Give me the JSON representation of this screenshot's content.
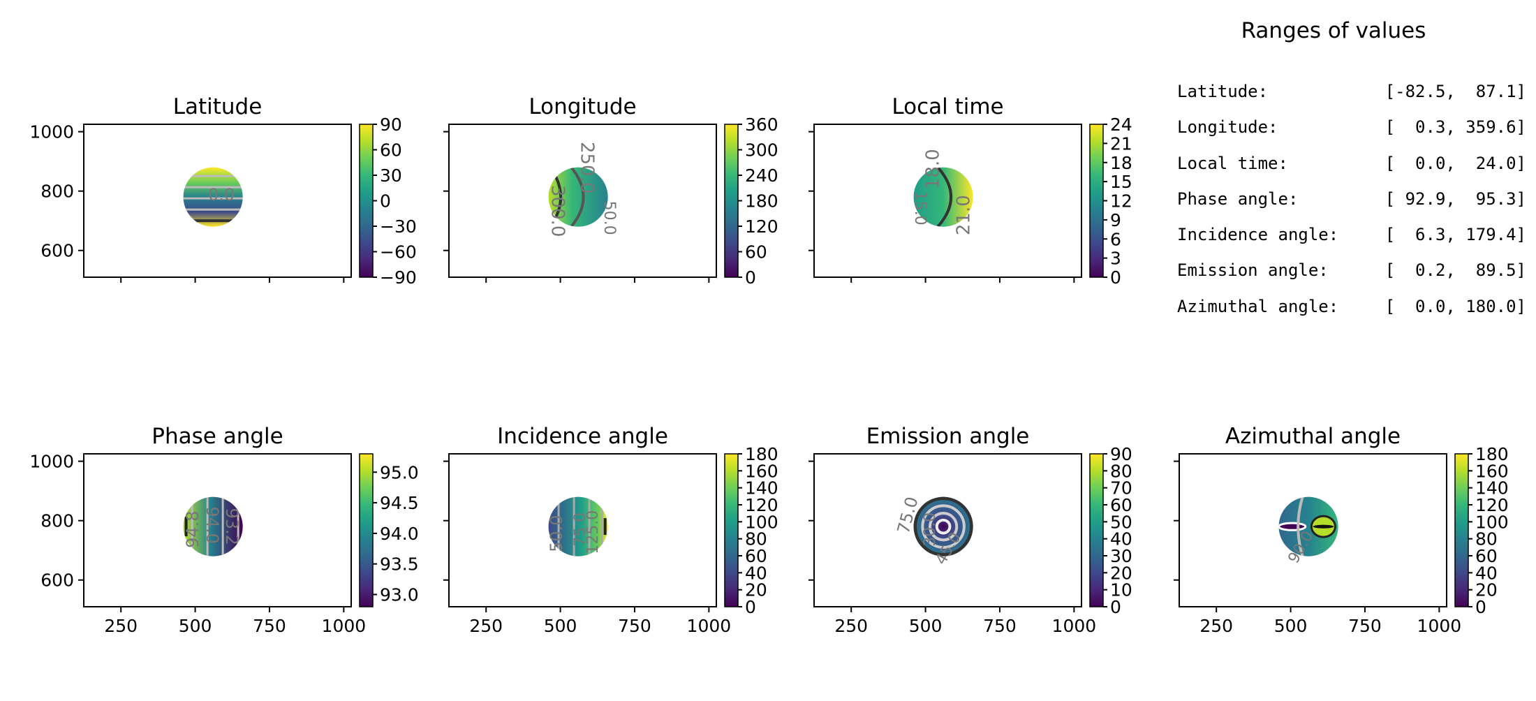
{
  "figure": {
    "ranges_title": "Ranges of values",
    "ranges": [
      {
        "label": "Latitude:",
        "value": "[-82.5,  87.1]"
      },
      {
        "label": "Longitude:",
        "value": "[  0.3, 359.6]"
      },
      {
        "label": "Local time:",
        "value": "[  0.0,  24.0]"
      },
      {
        "label": "Phase angle:",
        "value": "[ 92.9,  95.3]"
      },
      {
        "label": "Incidence angle:",
        "value": "[  6.3, 179.4]"
      },
      {
        "label": "Emission angle:",
        "value": "[  0.2,  89.5]"
      },
      {
        "label": "Azimuthal angle:",
        "value": "[  0.0, 180.0]"
      }
    ]
  },
  "chart_data": [
    {
      "type": "heatmap",
      "title": "Latitude",
      "colormap": "viridis",
      "xlim": [
        125,
        1025
      ],
      "ylim": [
        510,
        1025
      ],
      "xticks": [
        250,
        500,
        750,
        1000
      ],
      "xticklabels": [],
      "yticks": [
        600,
        800,
        1000
      ],
      "yticklabels": [
        "600",
        "800",
        "1000"
      ],
      "disk": {
        "cx": 560,
        "cy": 780,
        "r": 100
      },
      "colorbar": {
        "range": [
          -90,
          90
        ],
        "ticks": [
          90,
          60,
          30,
          0,
          -30,
          -60,
          -90
        ],
        "labels": [
          "90",
          "60",
          "30",
          "0",
          "−30",
          "−60",
          "−90"
        ]
      },
      "contour_labels": [
        "0.0"
      ]
    },
    {
      "type": "heatmap",
      "title": "Longitude",
      "colormap": "viridis",
      "xlim": [
        125,
        1025
      ],
      "ylim": [
        510,
        1025
      ],
      "xticks": [
        250,
        500,
        750,
        1000
      ],
      "xticklabels": [],
      "yticks": [
        600,
        800,
        1000
      ],
      "yticklabels": [],
      "disk": {
        "cx": 560,
        "cy": 780,
        "r": 100
      },
      "colorbar": {
        "range": [
          0,
          360
        ],
        "ticks": [
          360,
          300,
          240,
          180,
          120,
          60,
          0
        ],
        "labels": [
          "360",
          "300",
          "240",
          "180",
          "120",
          "60",
          "0"
        ]
      },
      "contour_labels": [
        "250.0",
        "300.0",
        "50.0"
      ]
    },
    {
      "type": "heatmap",
      "title": "Local time",
      "colormap": "viridis",
      "xlim": [
        125,
        1025
      ],
      "ylim": [
        510,
        1025
      ],
      "xticks": [
        250,
        500,
        750,
        1000
      ],
      "xticklabels": [],
      "yticks": [
        600,
        800,
        1000
      ],
      "yticklabels": [],
      "disk": {
        "cx": 560,
        "cy": 780,
        "r": 100
      },
      "colorbar": {
        "range": [
          0,
          24
        ],
        "ticks": [
          24,
          21,
          18,
          15,
          12,
          9,
          6,
          3,
          0
        ],
        "labels": [
          "24",
          "21",
          "18",
          "15",
          "12",
          "9",
          "6",
          "3",
          "0"
        ]
      },
      "contour_labels": [
        "18.0",
        "15.0",
        "21.0"
      ]
    },
    {
      "type": "heatmap",
      "title": "Phase angle",
      "colormap": "viridis",
      "xlim": [
        125,
        1025
      ],
      "ylim": [
        510,
        1025
      ],
      "xticks": [
        250,
        500,
        750,
        1000
      ],
      "xticklabels": [
        "250",
        "500",
        "750",
        "1000"
      ],
      "yticks": [
        600,
        800,
        1000
      ],
      "yticklabels": [
        "600",
        "800",
        "1000"
      ],
      "disk": {
        "cx": 560,
        "cy": 780,
        "r": 100
      },
      "colorbar": {
        "range": [
          92.8,
          95.3
        ],
        "ticks": [
          95.0,
          94.5,
          94.0,
          93.5,
          93.0
        ],
        "labels": [
          "95.0",
          "94.5",
          "94.0",
          "93.5",
          "93.0"
        ]
      },
      "contour_labels": [
        "94.8",
        "94.0",
        "93.2"
      ]
    },
    {
      "type": "heatmap",
      "title": "Incidence angle",
      "colormap": "viridis",
      "xlim": [
        125,
        1025
      ],
      "ylim": [
        510,
        1025
      ],
      "xticks": [
        250,
        500,
        750,
        1000
      ],
      "xticklabels": [
        "250",
        "500",
        "750",
        "1000"
      ],
      "yticks": [
        600,
        800,
        1000
      ],
      "yticklabels": [],
      "disk": {
        "cx": 560,
        "cy": 780,
        "r": 100
      },
      "colorbar": {
        "range": [
          0,
          180
        ],
        "ticks": [
          180,
          160,
          140,
          120,
          100,
          80,
          60,
          40,
          20,
          0
        ],
        "labels": [
          "180",
          "160",
          "140",
          "120",
          "100",
          "80",
          "60",
          "40",
          "20",
          "0"
        ]
      },
      "contour_labels": [
        "50.0",
        "75.0",
        "125.0"
      ]
    },
    {
      "type": "heatmap",
      "title": "Emission angle",
      "colormap": "viridis",
      "xlim": [
        125,
        1025
      ],
      "ylim": [
        510,
        1025
      ],
      "xticks": [
        250,
        500,
        750,
        1000
      ],
      "xticklabels": [
        "250",
        "500",
        "750",
        "1000"
      ],
      "yticks": [
        600,
        800,
        1000
      ],
      "yticklabels": [],
      "disk": {
        "cx": 560,
        "cy": 780,
        "r": 100
      },
      "colorbar": {
        "range": [
          0,
          90
        ],
        "ticks": [
          90,
          80,
          70,
          60,
          50,
          40,
          30,
          20,
          10,
          0
        ],
        "labels": [
          "90",
          "80",
          "70",
          "60",
          "50",
          "40",
          "30",
          "20",
          "10",
          "0"
        ]
      },
      "contour_labels": [
        "75.0",
        "30.0",
        "45.0"
      ]
    },
    {
      "type": "heatmap",
      "title": "Azimuthal angle",
      "colormap": "viridis",
      "xlim": [
        125,
        1025
      ],
      "ylim": [
        510,
        1025
      ],
      "xticks": [
        250,
        500,
        750,
        1000
      ],
      "xticklabels": [
        "250",
        "500",
        "750",
        "1000"
      ],
      "yticks": [
        600,
        800,
        1000
      ],
      "yticklabels": [],
      "disk": {
        "cx": 560,
        "cy": 780,
        "r": 100
      },
      "colorbar": {
        "range": [
          0,
          180
        ],
        "ticks": [
          180,
          160,
          140,
          120,
          100,
          80,
          60,
          40,
          20,
          0
        ],
        "labels": [
          "180",
          "160",
          "140",
          "120",
          "100",
          "80",
          "60",
          "40",
          "20",
          "0"
        ]
      },
      "contour_labels": [
        "90.0"
      ]
    }
  ]
}
